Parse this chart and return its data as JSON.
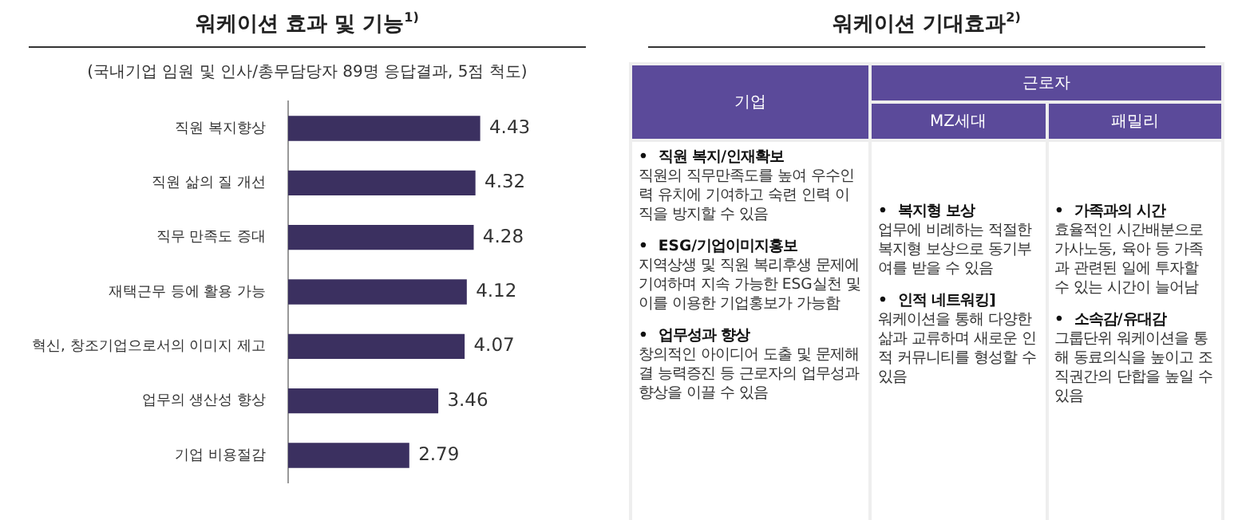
{
  "chart_data": [
    {
      "type": "bar",
      "orientation": "horizontal",
      "title": "워케이션 효과 및 기능$^{1)}$",
      "subtitle": "(국내기업 임원 및 인사/총무담당자  89명 응답결과, 5점 척도)",
      "categories": [
        "직원 복지향상",
        "직원 삶의 질 개선",
        "직무 만족도 증대",
        "재택근무 등에 활용 가능",
        "혁신, 창조기업으로서의 이미지 제고",
        "업무의 생산성 향상",
        "기업 비용절감"
      ],
      "values": [
        4.43,
        4.32,
        4.28,
        4.12,
        4.07,
        3.46,
        2.79
      ],
      "color": "#3b3060",
      "tick_labels": "y",
      "data_labels": true,
      "grid": false,
      "legend": false
    },
    {
      "type": "other",
      "title": "워케이션 기대효과$^{2)}$",
      "annotations": [
        "기업",
        "근로자",
        "MZ세대",
        "패밀리",
        "•  직원 복지/인재확보",
        "직원의 직무만족도를 높여 우수인력 유치에 기여하고 숙련 인력 이직을 방지할 수 있음",
        "•  ESG/기업이미지홍보",
        "지역상생 및 직원 복리후생 문제에 기여하며 지속 가능한 ESG실천 및 이를 이용한 기업홍보가 가능함",
        "•  업무성과 향상",
        "창의적인 아이디어 도출 및 문제해결 능력증진 등 근로자의 업무성과 향상을 이끌 수 있음",
        "•  복지형 보상",
        "업무에 비례하는 적절한 복지형 보상으로 동기부여를 받을 수 있음",
        "•  인적 네트워킹]",
        "워케이션을 통해 다양한 삶과 교류하며 새로운 인적 커뮤니티를 형성할 수 있음",
        "•  가족과의 시간",
        "효율적인 시간배분으로 가사노동, 육아 등 가족과 관련된 일에 투자할 수 있는 시간이 늘어남",
        "•  소속감/유대감",
        "그룹단위 워케이션을 통해 동료의식을 높이고 조직권간의 단합을 높일 수 있음"
      ]
    }
  ]
}
